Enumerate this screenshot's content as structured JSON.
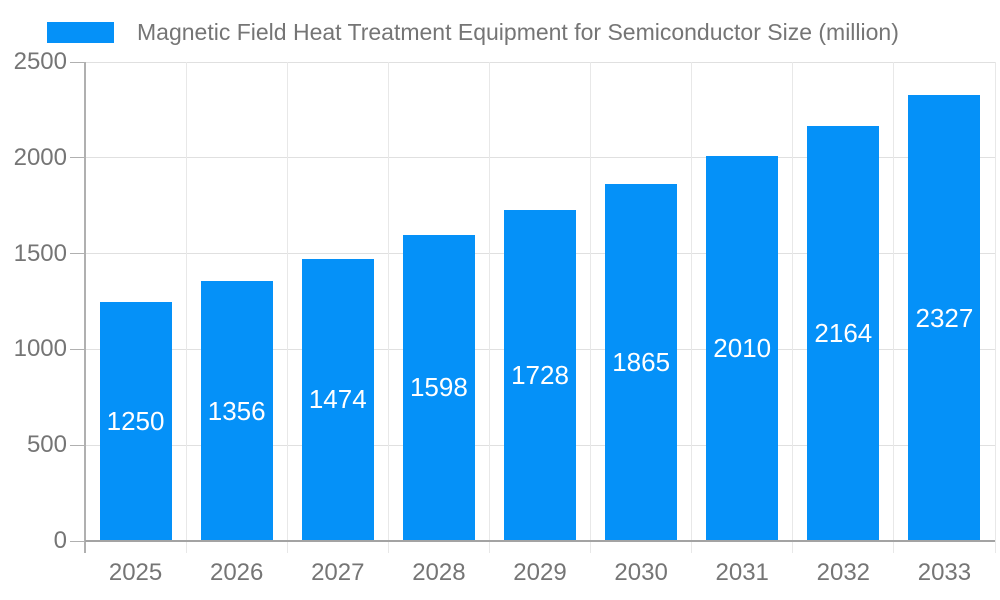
{
  "legend": {
    "series_label": "Magnetic Field Heat Treatment Equipment for Semiconductor Size (million)"
  },
  "colors": {
    "bar": "#0591f8",
    "value_label": "#ffffff",
    "axis_text": "#757575",
    "grid_horizontal": "#e0e0e0",
    "grid_vertical": "#e8e8e8",
    "axis_line": "#b0b0b0",
    "baseline": "#a3a3a3"
  },
  "chart_data": {
    "type": "bar",
    "title": "Magnetic Field Heat Treatment Equipment for Semiconductor Size (million)",
    "categories": [
      "2025",
      "2026",
      "2027",
      "2028",
      "2029",
      "2030",
      "2031",
      "2032",
      "2033"
    ],
    "series": [
      {
        "name": "Magnetic Field Heat Treatment Equipment for Semiconductor Size (million)",
        "values": [
          1250,
          1356,
          1474,
          1598,
          1728,
          1865,
          2010,
          2164,
          2327
        ]
      }
    ],
    "xlabel": "",
    "ylabel": "",
    "ylim": [
      0,
      2500
    ],
    "yticks": [
      0,
      500,
      1000,
      1500,
      2000,
      2500
    ],
    "grid": true,
    "legend_position": "top-left",
    "bar_value_labels_shown": true
  }
}
